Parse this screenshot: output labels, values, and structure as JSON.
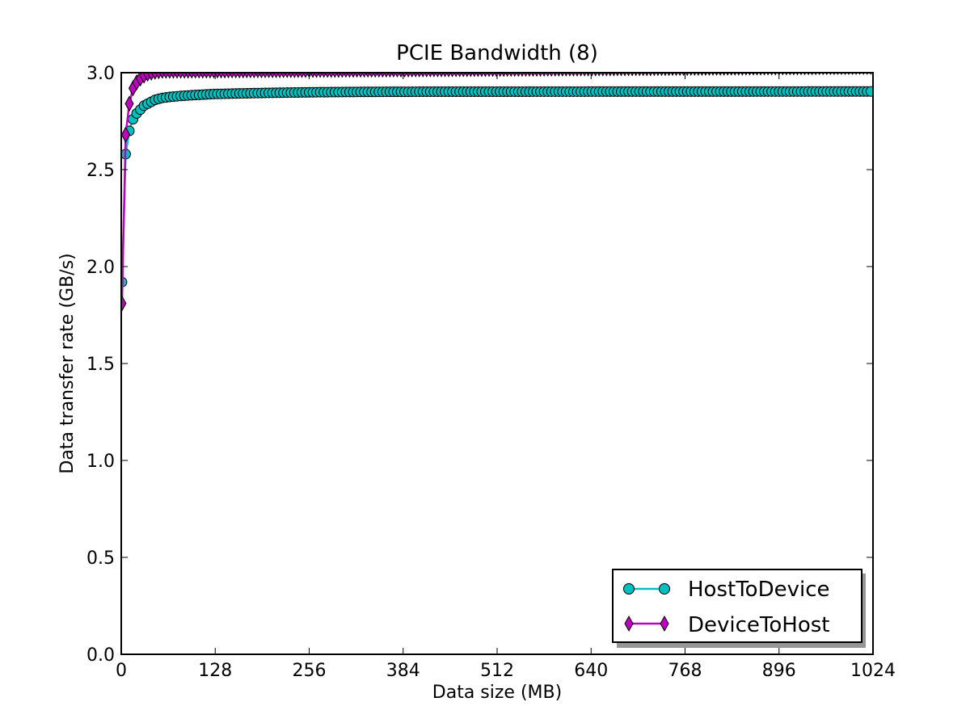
{
  "chart_data": {
    "type": "line",
    "title": "PCIE Bandwidth (8)",
    "xlabel": "Data size (MB)",
    "ylabel": "Data transfer rate (GB/s)",
    "xlim": [
      0,
      1024
    ],
    "ylim": [
      0.0,
      3.0
    ],
    "xticks": [
      0,
      128,
      256,
      384,
      512,
      640,
      768,
      896,
      1024
    ],
    "xtick_labels": [
      "0",
      "128",
      "256",
      "384",
      "512",
      "640",
      "768",
      "896",
      "1024"
    ],
    "yticks": [
      0.0,
      0.5,
      1.0,
      1.5,
      2.0,
      2.5,
      3.0
    ],
    "ytick_labels": [
      "0.0",
      "0.5",
      "1.0",
      "1.5",
      "2.0",
      "2.5",
      "3.0"
    ],
    "grid": false,
    "legend_position": "bottom-right",
    "series": [
      {
        "name": "HostToDevice",
        "color": "#00bfbf",
        "marker": "circle",
        "x_start": 1,
        "x_step": 5,
        "x_end": 1021,
        "y_knots": [
          [
            1,
            1.92
          ],
          [
            6,
            2.58
          ],
          [
            11,
            2.7
          ],
          [
            16,
            2.76
          ],
          [
            21,
            2.79
          ],
          [
            26,
            2.81
          ],
          [
            31,
            2.83
          ],
          [
            36,
            2.84
          ],
          [
            41,
            2.85
          ],
          [
            46,
            2.86
          ],
          [
            51,
            2.865
          ],
          [
            56,
            2.87
          ],
          [
            66,
            2.875
          ],
          [
            81,
            2.88
          ],
          [
            101,
            2.885
          ],
          [
            126,
            2.89
          ],
          [
            160,
            2.893
          ],
          [
            200,
            2.896
          ],
          [
            260,
            2.899
          ],
          [
            330,
            2.901
          ],
          [
            420,
            2.902
          ],
          [
            1021,
            2.903
          ]
        ]
      },
      {
        "name": "DeviceToHost",
        "color": "#bf00bf",
        "marker": "diamond",
        "x_start": 1,
        "x_step": 5,
        "x_end": 1021,
        "y_knots": [
          [
            1,
            1.81
          ],
          [
            6,
            2.68
          ],
          [
            11,
            2.84
          ],
          [
            16,
            2.92
          ],
          [
            21,
            2.95
          ],
          [
            26,
            2.97
          ],
          [
            31,
            2.985
          ],
          [
            36,
            2.995
          ],
          [
            41,
            3.0
          ],
          [
            46,
            3.005
          ],
          [
            56,
            3.01
          ],
          [
            1021,
            3.03
          ]
        ]
      }
    ]
  }
}
